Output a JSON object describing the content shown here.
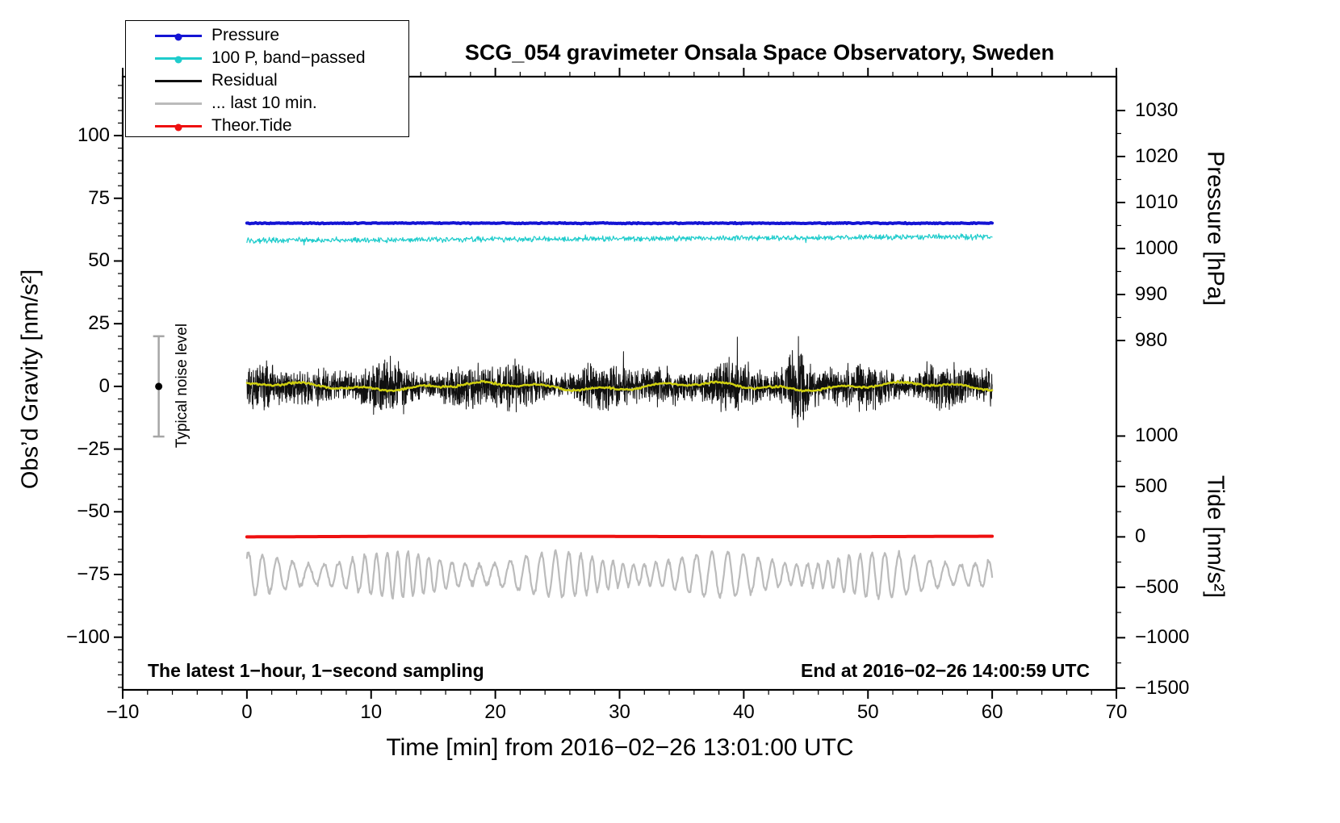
{
  "chart_data": {
    "type": "line",
    "title": "SCG_054 gravimeter Onsala Space Observatory, Sweden",
    "xlabel": "Time [min] from 2016−02−26 13:01:00 UTC",
    "xlim": [
      -10,
      70
    ],
    "x_ticks": [
      -10,
      0,
      10,
      20,
      30,
      40,
      50,
      60,
      70
    ],
    "x_minor_step": 2,
    "data_time_range_min": [
      0,
      60
    ],
    "grid": false,
    "background": "#ffffff",
    "axes": {
      "gravity": {
        "label": "Obs’d Gravity [nm/s²]",
        "side": "left",
        "ticks": [
          100,
          75,
          50,
          25,
          0,
          -25,
          -50,
          -75,
          -100
        ],
        "minor_step": 5,
        "ylim": [
          -121,
          123.5
        ]
      },
      "pressure": {
        "label": "Pressure [hPa]",
        "side": "right-top",
        "ticks": [
          1030,
          1020,
          1010,
          1000,
          990,
          980
        ],
        "minor_step": 5,
        "anchor": {
          "hPa": 1030,
          "gravity": 110.0
        },
        "gravity_per_hPa": 1.834
      },
      "tide": {
        "label": "Tide [nm/s²]",
        "side": "right-bottom",
        "ticks": [
          1000,
          500,
          0,
          -500,
          -1000,
          -1500
        ],
        "minor_step": 250,
        "anchor": {
          "tide": 0,
          "gravity": -60.0
        },
        "gravity_per_unit": 0.0402
      }
    },
    "legend": {
      "position": "top-left",
      "items": [
        {
          "label": "Pressure",
          "color": "#1414d4",
          "dot": true
        },
        {
          "label": "100 P, band−passed",
          "color": "#1fcccc",
          "dot": true
        },
        {
          "label": "Residual",
          "color": "#101010",
          "dot": false
        },
        {
          "label": "... last 10 min.",
          "color": "#bbbbbb",
          "dot": false
        },
        {
          "label": "Theor.Tide",
          "color": "#ee1010",
          "dot": true
        }
      ]
    },
    "series": [
      {
        "name": "... last 10 min.",
        "kind": "osc",
        "axis": "gravity",
        "color": "#bbbbbb",
        "width": 2.2,
        "baseline": -75,
        "amp_base": 6.5,
        "amp_var": 2.5,
        "period_min": 1.05,
        "points_per_min": 20
      },
      {
        "name": "Theor.Tide",
        "kind": "tide",
        "axis": "tide",
        "color": "#ee1010",
        "width": 4,
        "value": 0,
        "drift_gravity": 0.3,
        "points_per_min": 5
      },
      {
        "name": "Residual",
        "kind": "residual",
        "axis": "gravity",
        "color": "#101010",
        "width": 1,
        "mean": 0,
        "envelope_base": 8,
        "envelope_var": 2.5,
        "spike_prob": 0.02,
        "spike_gain": 1.6,
        "clip_amp": 26,
        "burst": {
          "center": 44.2,
          "sigma": 0.7,
          "amp": 14
        },
        "points_per_min": 60
      },
      {
        "name": "Residual smoothed",
        "kind": "smoothed",
        "axis": "gravity",
        "color": "#cfcf10",
        "width": 2.5,
        "mean": 0,
        "amp": 1.4,
        "points_per_min": 10
      },
      {
        "name": "100 P, band−passed",
        "kind": "bandpassed",
        "axis": "gravity",
        "color": "#1fcccc",
        "width": 1.2,
        "baseline": 58.2,
        "trend": 1.5,
        "noise_amp": 1.3,
        "points_per_min": 20
      },
      {
        "name": "Pressure",
        "kind": "flat",
        "axis": "pressure",
        "color": "#1414d4",
        "width": 4,
        "mean_hPa": 1005.5,
        "noise_amp_gravity": 0.25,
        "points_per_min": 10
      }
    ],
    "annotations": {
      "sampling": "The latest 1−hour, 1−second sampling",
      "end_time": "End at 2016−02−26 14:00:59 UTC",
      "noise_label": "Typical noise level"
    },
    "noise_bar": {
      "x_time": -7.1,
      "center_gravity": 0,
      "half_range": 20,
      "bar_color": "#a6a6a6",
      "dot_color": "#000000"
    }
  }
}
